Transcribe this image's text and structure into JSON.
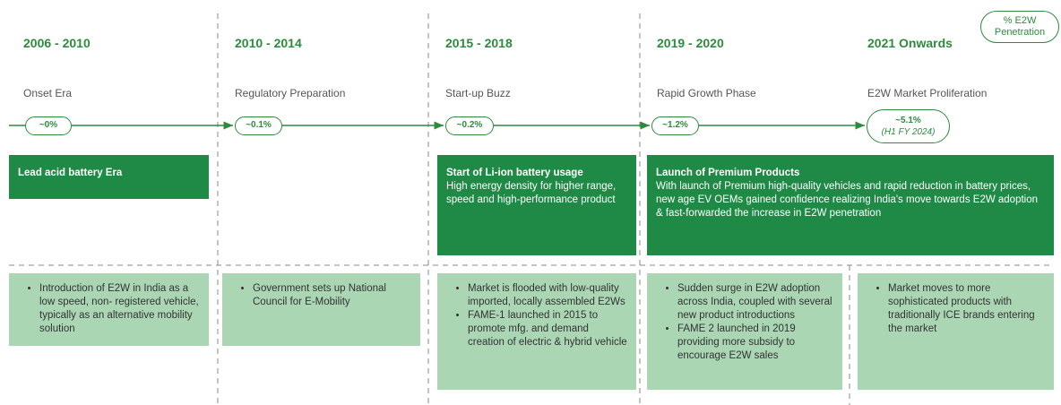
{
  "legend": "% E2W Penetration",
  "periods": [
    {
      "year": "2006 - 2010",
      "era": "Onset Era",
      "penetration": "~0%",
      "bullets": [
        "Introduction of E2W in India as a low speed, non- registered vehicle, typically as an alternative mobility solution"
      ]
    },
    {
      "year": "2010 - 2014",
      "era": "Regulatory Preparation",
      "penetration": "~0.1%",
      "bullets": [
        "Government sets up National Council for E-Mobility"
      ]
    },
    {
      "year": "2015 - 2018",
      "era": "Start-up Buzz",
      "penetration": "~0.2%",
      "bullets": [
        "Market is flooded with low-quality imported, locally assembled E2Ws",
        "FAME-1 launched in 2015 to promote mfg. and demand creation of electric & hybrid vehicle"
      ]
    },
    {
      "year": "2019 - 2020",
      "era": "Rapid Growth Phase",
      "penetration": "~1.2%",
      "bullets": [
        "Sudden surge in E2W adoption across India, coupled with several new product introductions",
        "FAME 2 launched in 2019 providing more subsidy to encourage E2W sales"
      ]
    },
    {
      "year": "2021 Onwards",
      "era": "E2W Market Proliferation",
      "penetration": "~5.1%",
      "penetration_note": "(H1 FY 2024)",
      "bullets": [
        "Market moves to more sophisticated products with traditionally ICE brands entering the market"
      ]
    }
  ],
  "highlights": [
    {
      "title": "Lead acid battery Era"
    },
    {
      "title": "Start of Li-ion battery usage",
      "description": "High energy density for higher range, speed and high-performance product"
    },
    {
      "title": "Launch of Premium Products",
      "description": "With launch of Premium high-quality vehicles and rapid reduction in battery prices, new age EV OEMs gained confidence realizing India's move towards E2W adoption & fast-forwarded the increase in E2W penetration"
    }
  ]
}
